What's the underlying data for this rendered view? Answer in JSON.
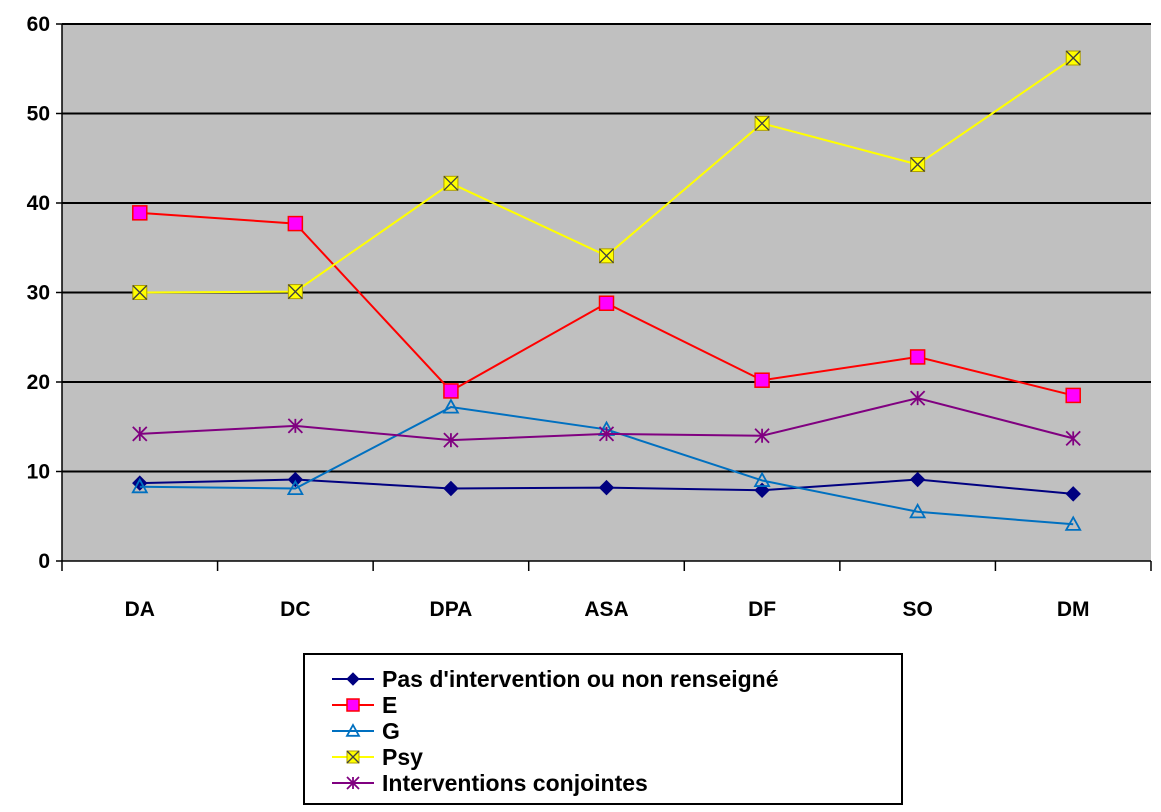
{
  "chart_data": {
    "type": "line",
    "title": "",
    "xlabel": "",
    "ylabel": "",
    "categories": [
      "DA",
      "DC",
      "DPA",
      "ASA",
      "DF",
      "SO",
      "DM"
    ],
    "ylim": [
      0,
      60
    ],
    "yticks": [
      0,
      10,
      20,
      30,
      40,
      50,
      60
    ],
    "grid": true,
    "legend_position": "bottom",
    "plot_background": "#c0c0c0",
    "series": [
      {
        "name": "Pas d'intervention ou non renseigné",
        "values": [
          8.7,
          9.1,
          8.1,
          8.2,
          7.9,
          9.1,
          7.5
        ],
        "color": "#000080",
        "marker": "diamond"
      },
      {
        "name": "E",
        "values": [
          38.9,
          37.7,
          19.0,
          28.8,
          20.2,
          22.8,
          18.5
        ],
        "color": "#ff0000",
        "marker": "square"
      },
      {
        "name": "G",
        "values": [
          8.3,
          8.1,
          17.2,
          14.7,
          9.0,
          5.5,
          4.1
        ],
        "color": "#0070c0",
        "marker": "triangle"
      },
      {
        "name": "Psy",
        "values": [
          30.0,
          30.1,
          42.2,
          34.1,
          48.9,
          44.3,
          56.2
        ],
        "color": "#ffff00",
        "marker": "x-square"
      },
      {
        "name": "Interventions conjointes",
        "values": [
          14.2,
          15.1,
          13.5,
          14.2,
          14.0,
          18.2,
          13.7
        ],
        "color": "#800080",
        "marker": "asterisk"
      }
    ]
  }
}
